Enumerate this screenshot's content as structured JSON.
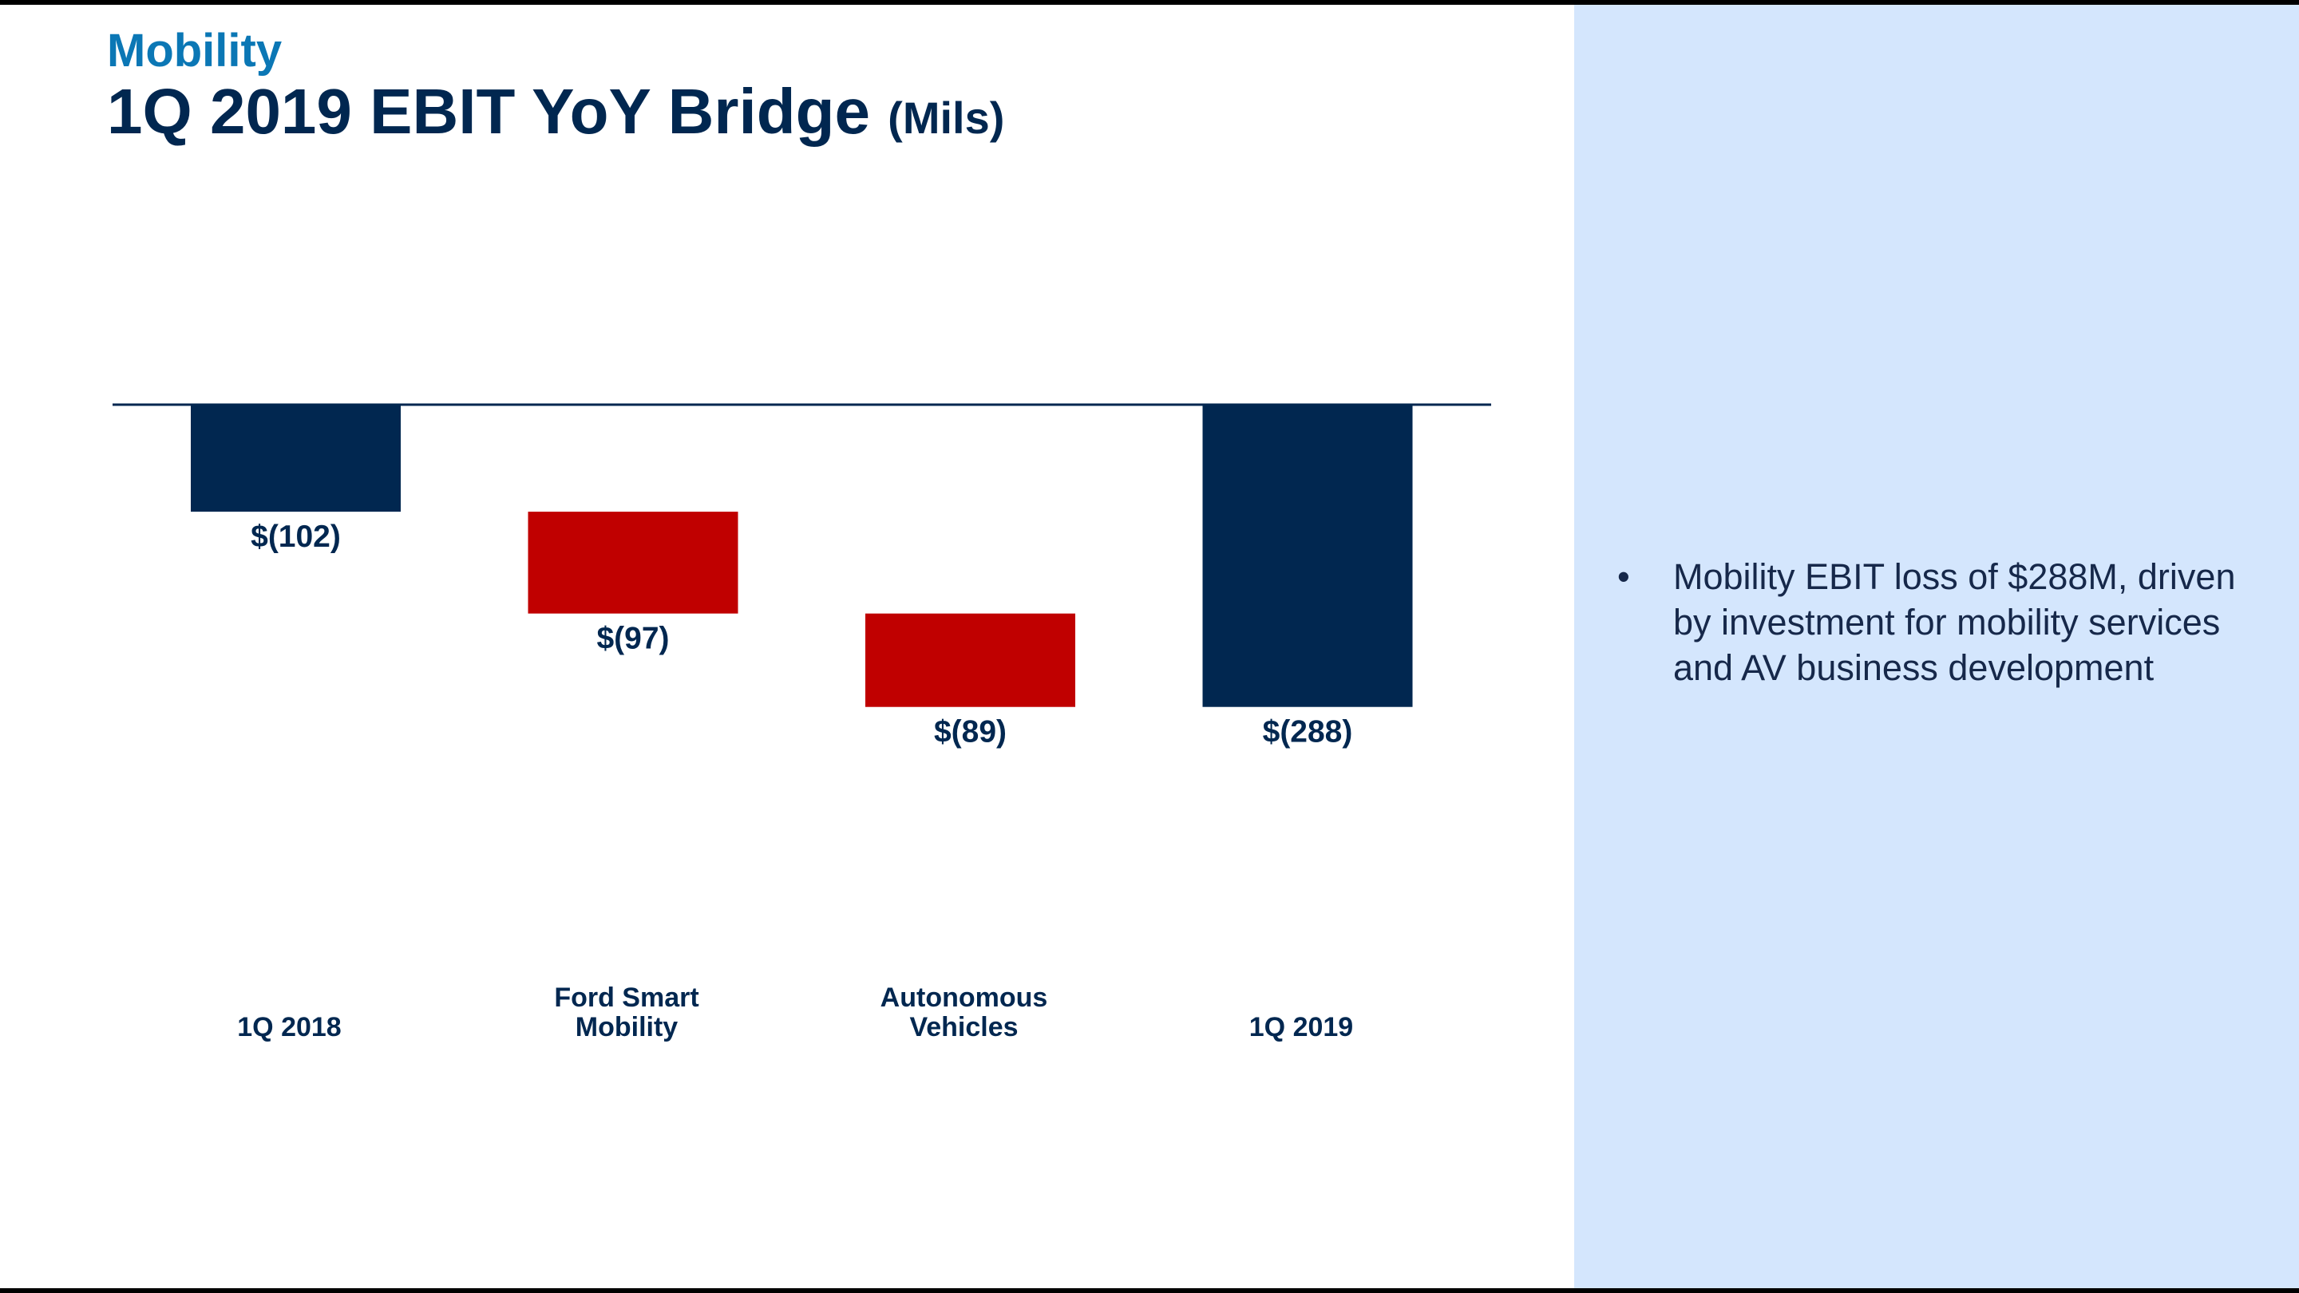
{
  "header": {
    "section": "Mobility",
    "title": "1Q 2019 EBIT YoY Bridge",
    "unit": "(Mils)"
  },
  "colors": {
    "total": "#012750",
    "decrease": "#c00000",
    "panel": "#d4e6fd",
    "section": "#0b77b5"
  },
  "chart_data": {
    "type": "bar",
    "subtype": "waterfall",
    "categories": [
      "1Q 2018",
      "Ford Smart Mobility",
      "Autonomous Vehicles",
      "1Q 2019"
    ],
    "category_lines": [
      [
        "1Q 2018"
      ],
      [
        "Ford Smart",
        "Mobility"
      ],
      [
        "Autonomous",
        "Vehicles"
      ],
      [
        "1Q 2019"
      ]
    ],
    "values": [
      -102,
      -97,
      -89,
      -288
    ],
    "kinds": [
      "total",
      "delta",
      "delta",
      "total"
    ],
    "data_labels": [
      "$(102)",
      "$(97)",
      "$(89)",
      "$(288)"
    ],
    "grid": false,
    "legend": "none"
  },
  "sidebar": {
    "bullets": [
      "Mobility EBIT loss of $288M, driven by investment for mobility services and AV business development"
    ],
    "bullet_char": "•"
  }
}
